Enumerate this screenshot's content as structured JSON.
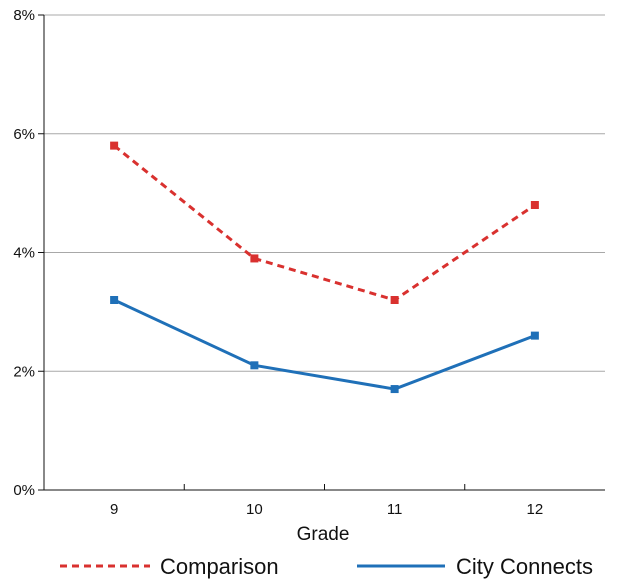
{
  "chart_data": {
    "type": "line",
    "title": "",
    "xlabel": "Grade",
    "ylabel": "",
    "categories": [
      "9",
      "10",
      "11",
      "12"
    ],
    "y_ticks": [
      "0%",
      "2%",
      "4%",
      "6%",
      "8%"
    ],
    "ylim": [
      0,
      8
    ],
    "grid": true,
    "legend_position": "bottom",
    "series": [
      {
        "name": "Comparison",
        "values": [
          5.8,
          3.9,
          3.2,
          4.8
        ],
        "color": "#d9312f",
        "style": "dashed"
      },
      {
        "name": "City Connects",
        "values": [
          3.2,
          2.1,
          1.7,
          2.6
        ],
        "color": "#1f70b8",
        "style": "solid"
      }
    ]
  }
}
